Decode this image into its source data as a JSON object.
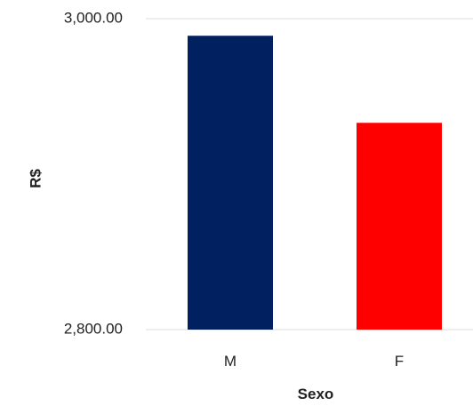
{
  "chart_data": {
    "type": "bar",
    "categories": [
      "M",
      "F"
    ],
    "values": [
      2989,
      2933
    ],
    "colors": [
      "#002060",
      "#ff0000"
    ],
    "xlabel": "Sexo",
    "ylabel": "R$",
    "ylim": [
      2800,
      3000
    ],
    "yticks": [
      {
        "value": 2800,
        "label": "2,800.00"
      },
      {
        "value": 3000,
        "label": "3,000.00"
      }
    ],
    "grid": true,
    "legend": "none"
  }
}
